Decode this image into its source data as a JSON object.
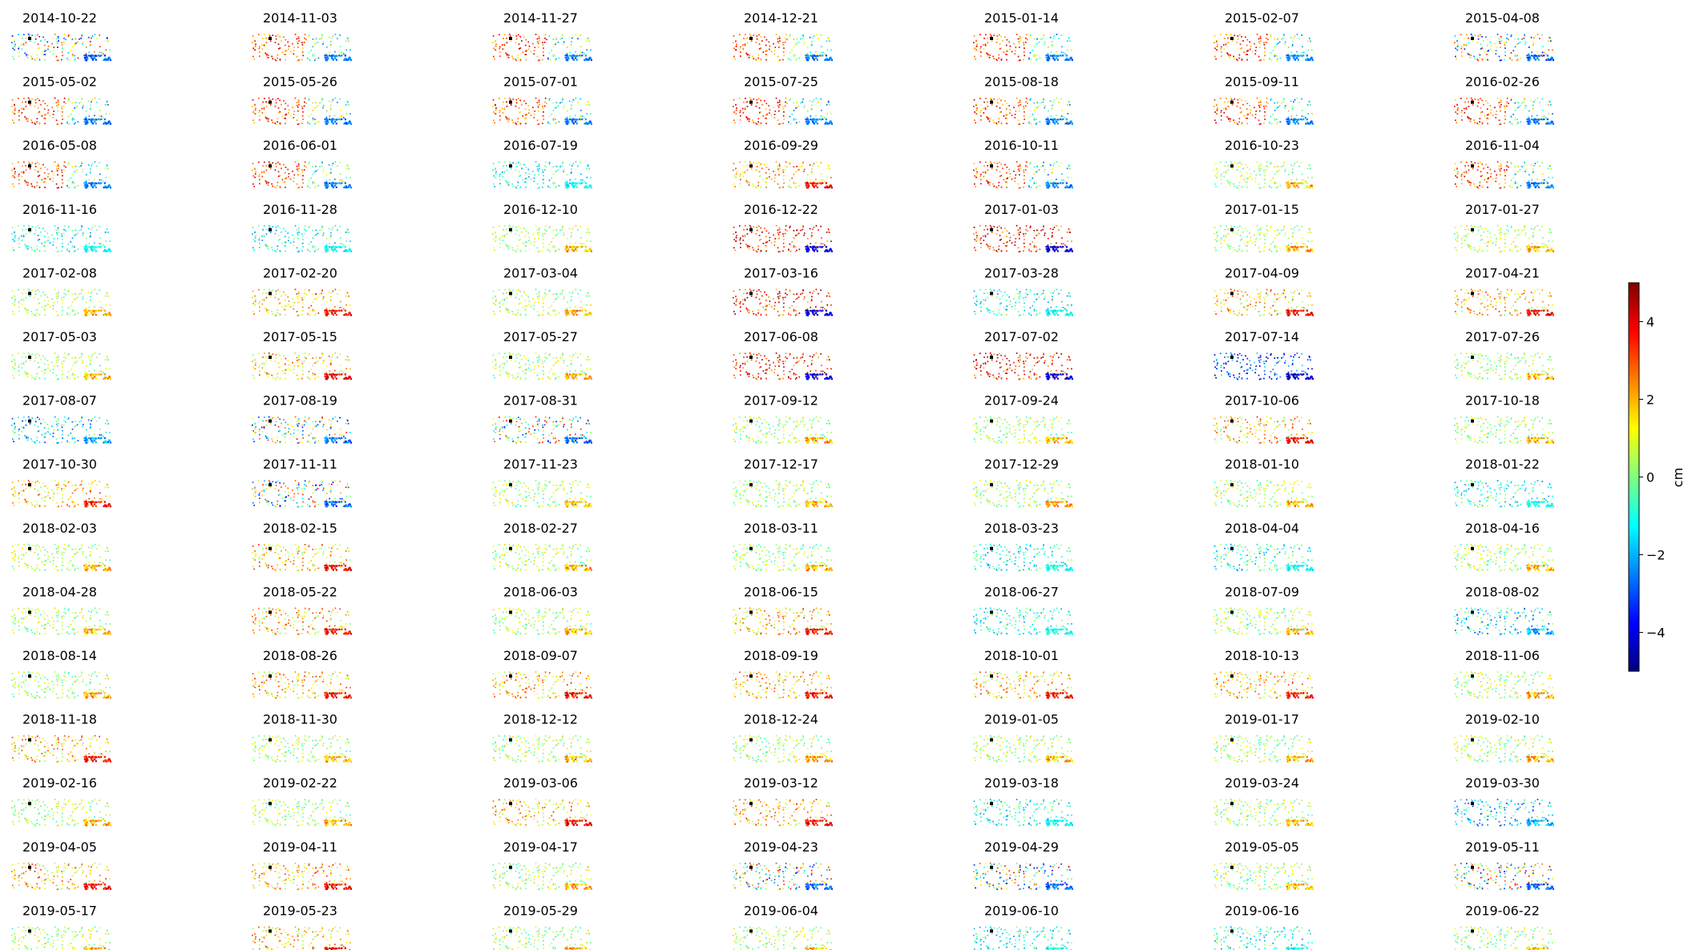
{
  "chart_data": {
    "type": "scatter",
    "colorbar": {
      "label": "cm",
      "vmin": -5,
      "vmax": 5,
      "ticks": [
        4,
        2,
        0,
        -2,
        -4
      ],
      "tick_labels": [
        "4",
        "2",
        "0",
        "−2",
        "−4"
      ],
      "colormap": "jet",
      "colormap_stops": [
        "#00007f",
        "#0000ff",
        "#007fff",
        "#00ffff",
        "#7fff7f",
        "#ffff00",
        "#ff7f00",
        "#ff0000",
        "#7f0000"
      ]
    },
    "panels": [
      {
        "date": "2014-10-22",
        "pattern": "mix"
      },
      {
        "date": "2014-11-03",
        "pattern": "warm-mix"
      },
      {
        "date": "2014-11-27",
        "pattern": "warm-mix"
      },
      {
        "date": "2014-12-21",
        "pattern": "warm-mix"
      },
      {
        "date": "2015-01-14",
        "pattern": "warm-mix"
      },
      {
        "date": "2015-02-07",
        "pattern": "warm-mix"
      },
      {
        "date": "2015-04-08",
        "pattern": "mix"
      },
      {
        "date": "2015-05-02",
        "pattern": "warm-mix"
      },
      {
        "date": "2015-05-26",
        "pattern": "warm-mix"
      },
      {
        "date": "2015-07-01",
        "pattern": "warm-mix"
      },
      {
        "date": "2015-07-25",
        "pattern": "warm-mix"
      },
      {
        "date": "2015-08-18",
        "pattern": "warm-mix"
      },
      {
        "date": "2015-09-11",
        "pattern": "warm-mix"
      },
      {
        "date": "2016-02-26",
        "pattern": "warm-mix"
      },
      {
        "date": "2016-05-08",
        "pattern": "warm-mix"
      },
      {
        "date": "2016-06-01",
        "pattern": "warm-mix"
      },
      {
        "date": "2016-07-19",
        "pattern": "cool"
      },
      {
        "date": "2016-09-29",
        "pattern": "warm"
      },
      {
        "date": "2016-10-11",
        "pattern": "warm-mix"
      },
      {
        "date": "2016-10-23",
        "pattern": "green-warm"
      },
      {
        "date": "2016-11-04",
        "pattern": "warm-mix"
      },
      {
        "date": "2016-11-16",
        "pattern": "cool"
      },
      {
        "date": "2016-11-28",
        "pattern": "cool"
      },
      {
        "date": "2016-12-10",
        "pattern": "green-warm"
      },
      {
        "date": "2016-12-22",
        "pattern": "hot"
      },
      {
        "date": "2017-01-03",
        "pattern": "hot"
      },
      {
        "date": "2017-01-15",
        "pattern": "green-warm"
      },
      {
        "date": "2017-01-27",
        "pattern": "green-warm"
      },
      {
        "date": "2017-02-08",
        "pattern": "green-warm"
      },
      {
        "date": "2017-02-20",
        "pattern": "warm"
      },
      {
        "date": "2017-03-04",
        "pattern": "green-warm"
      },
      {
        "date": "2017-03-16",
        "pattern": "hot"
      },
      {
        "date": "2017-03-28",
        "pattern": "cool"
      },
      {
        "date": "2017-04-09",
        "pattern": "warm"
      },
      {
        "date": "2017-04-21",
        "pattern": "warm"
      },
      {
        "date": "2017-05-03",
        "pattern": "green-warm"
      },
      {
        "date": "2017-05-15",
        "pattern": "warm"
      },
      {
        "date": "2017-05-27",
        "pattern": "green-warm"
      },
      {
        "date": "2017-06-08",
        "pattern": "hot"
      },
      {
        "date": "2017-07-02",
        "pattern": "hot"
      },
      {
        "date": "2017-07-14",
        "pattern": "deep-blue"
      },
      {
        "date": "2017-07-26",
        "pattern": "green-warm"
      },
      {
        "date": "2017-08-07",
        "pattern": "blue"
      },
      {
        "date": "2017-08-19",
        "pattern": "mix"
      },
      {
        "date": "2017-08-31",
        "pattern": "mix"
      },
      {
        "date": "2017-09-12",
        "pattern": "green-warm"
      },
      {
        "date": "2017-09-24",
        "pattern": "green-warm"
      },
      {
        "date": "2017-10-06",
        "pattern": "warm"
      },
      {
        "date": "2017-10-18",
        "pattern": "green-warm"
      },
      {
        "date": "2017-10-30",
        "pattern": "warm"
      },
      {
        "date": "2017-11-11",
        "pattern": "mix"
      },
      {
        "date": "2017-11-23",
        "pattern": "green-warm"
      },
      {
        "date": "2017-12-17",
        "pattern": "green-warm"
      },
      {
        "date": "2017-12-29",
        "pattern": "green-warm"
      },
      {
        "date": "2018-01-10",
        "pattern": "green-warm"
      },
      {
        "date": "2018-01-22",
        "pattern": "cool"
      },
      {
        "date": "2018-02-03",
        "pattern": "green-warm"
      },
      {
        "date": "2018-02-15",
        "pattern": "warm"
      },
      {
        "date": "2018-02-27",
        "pattern": "green-warm"
      },
      {
        "date": "2018-03-11",
        "pattern": "green-warm"
      },
      {
        "date": "2018-03-23",
        "pattern": "cool"
      },
      {
        "date": "2018-04-04",
        "pattern": "cool"
      },
      {
        "date": "2018-04-16",
        "pattern": "green-warm"
      },
      {
        "date": "2018-04-28",
        "pattern": "green-warm"
      },
      {
        "date": "2018-05-22",
        "pattern": "warm"
      },
      {
        "date": "2018-06-03",
        "pattern": "green-warm"
      },
      {
        "date": "2018-06-15",
        "pattern": "warm"
      },
      {
        "date": "2018-06-27",
        "pattern": "cool"
      },
      {
        "date": "2018-07-09",
        "pattern": "green-warm"
      },
      {
        "date": "2018-08-02",
        "pattern": "blue"
      },
      {
        "date": "2018-08-14",
        "pattern": "green-warm"
      },
      {
        "date": "2018-08-26",
        "pattern": "warm"
      },
      {
        "date": "2018-09-07",
        "pattern": "warm"
      },
      {
        "date": "2018-09-19",
        "pattern": "warm"
      },
      {
        "date": "2018-10-01",
        "pattern": "warm"
      },
      {
        "date": "2018-10-13",
        "pattern": "warm"
      },
      {
        "date": "2018-11-06",
        "pattern": "green-warm"
      },
      {
        "date": "2018-11-18",
        "pattern": "warm"
      },
      {
        "date": "2018-11-30",
        "pattern": "green-warm"
      },
      {
        "date": "2018-12-12",
        "pattern": "green-warm"
      },
      {
        "date": "2018-12-24",
        "pattern": "green-warm"
      },
      {
        "date": "2019-01-05",
        "pattern": "green-warm"
      },
      {
        "date": "2019-01-17",
        "pattern": "green-warm"
      },
      {
        "date": "2019-02-10",
        "pattern": "green-warm"
      },
      {
        "date": "2019-02-16",
        "pattern": "green-warm"
      },
      {
        "date": "2019-02-22",
        "pattern": "green-warm"
      },
      {
        "date": "2019-03-06",
        "pattern": "warm"
      },
      {
        "date": "2019-03-12",
        "pattern": "warm"
      },
      {
        "date": "2019-03-18",
        "pattern": "cool"
      },
      {
        "date": "2019-03-24",
        "pattern": "green-warm"
      },
      {
        "date": "2019-03-30",
        "pattern": "blue"
      },
      {
        "date": "2019-04-05",
        "pattern": "warm"
      },
      {
        "date": "2019-04-11",
        "pattern": "warm"
      },
      {
        "date": "2019-04-17",
        "pattern": "green-warm"
      },
      {
        "date": "2019-04-23",
        "pattern": "mix"
      },
      {
        "date": "2019-04-29",
        "pattern": "mix"
      },
      {
        "date": "2019-05-05",
        "pattern": "green-warm"
      },
      {
        "date": "2019-05-11",
        "pattern": "mix"
      },
      {
        "date": "2019-05-17",
        "pattern": "green-warm"
      },
      {
        "date": "2019-05-23",
        "pattern": "warm"
      },
      {
        "date": "2019-05-29",
        "pattern": "green-warm"
      },
      {
        "date": "2019-06-04",
        "pattern": "green-warm"
      },
      {
        "date": "2019-06-10",
        "pattern": "cool"
      },
      {
        "date": "2019-06-16",
        "pattern": "cool"
      },
      {
        "date": "2019-06-22",
        "pattern": "green-warm"
      }
    ]
  }
}
